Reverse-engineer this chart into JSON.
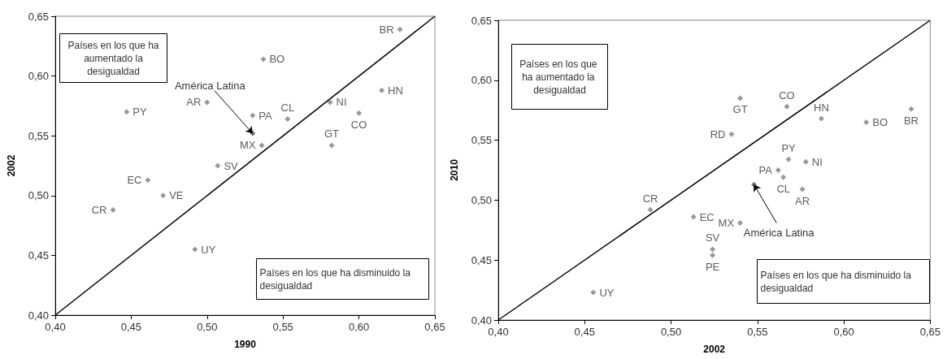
{
  "chart_data": [
    {
      "type": "scatter",
      "xlabel": "1990",
      "ylabel": "2002",
      "marker": "diamond",
      "xlim": [
        0.4,
        0.65
      ],
      "ylim": [
        0.4,
        0.65
      ],
      "xticks": [
        {
          "value": 0.4,
          "label": "0,40"
        },
        {
          "value": 0.45,
          "label": "0,45"
        },
        {
          "value": 0.5,
          "label": "0,50"
        },
        {
          "value": 0.55,
          "label": "0,55"
        },
        {
          "value": 0.6,
          "label": "0,60"
        },
        {
          "value": 0.65,
          "label": "0,65"
        }
      ],
      "yticks": [
        {
          "value": 0.4,
          "label": "0,40"
        },
        {
          "value": 0.45,
          "label": "0,45"
        },
        {
          "value": 0.5,
          "label": "0,50"
        },
        {
          "value": 0.55,
          "label": "0,55"
        },
        {
          "value": 0.6,
          "label": "0,60"
        },
        {
          "value": 0.65,
          "label": "0,65"
        }
      ],
      "series": [
        {
          "type": "line",
          "marker": "none",
          "color": "#000000",
          "x": [
            0.4,
            0.65
          ],
          "values": [
            0.4,
            0.65
          ]
        },
        {
          "name": "PY",
          "color": "#7f7f7f",
          "x": [
            0.447
          ],
          "values": [
            0.57
          ]
        },
        {
          "name": "AR",
          "color": "#7f7f7f",
          "x": [
            0.5
          ],
          "values": [
            0.578
          ]
        },
        {
          "name": "PA",
          "color": "#7f7f7f",
          "x": [
            0.53
          ],
          "values": [
            0.567
          ]
        },
        {
          "name": "MX",
          "color": "#7f7f7f",
          "x": [
            0.536
          ],
          "values": [
            0.542
          ]
        },
        {
          "name": "SV",
          "color": "#7f7f7f",
          "x": [
            0.507
          ],
          "values": [
            0.525
          ]
        },
        {
          "name": "EC",
          "color": "#7f7f7f",
          "x": [
            0.461
          ],
          "values": [
            0.513
          ]
        },
        {
          "name": "VE",
          "color": "#7f7f7f",
          "x": [
            0.471
          ],
          "values": [
            0.5
          ]
        },
        {
          "name": "CR",
          "color": "#7f7f7f",
          "x": [
            0.438
          ],
          "values": [
            0.488
          ]
        },
        {
          "name": "UY",
          "color": "#7f7f7f",
          "x": [
            0.492
          ],
          "values": [
            0.455
          ]
        },
        {
          "name": "BO",
          "color": "#7f7f7f",
          "x": [
            0.537
          ],
          "values": [
            0.614
          ]
        },
        {
          "name": "BR",
          "color": "#7f7f7f",
          "x": [
            0.627
          ],
          "values": [
            0.639
          ]
        },
        {
          "name": "CL",
          "color": "#7f7f7f",
          "x": [
            0.553
          ],
          "values": [
            0.564
          ]
        },
        {
          "name": "NI",
          "color": "#7f7f7f",
          "x": [
            0.581
          ],
          "values": [
            0.578
          ]
        },
        {
          "name": "HN",
          "color": "#7f7f7f",
          "x": [
            0.615
          ],
          "values": [
            0.588
          ]
        },
        {
          "name": "CO",
          "color": "#7f7f7f",
          "x": [
            0.6
          ],
          "values": [
            0.569
          ]
        },
        {
          "name": "GT",
          "color": "#7f7f7f",
          "x": [
            0.582
          ],
          "values": [
            0.542
          ]
        },
        {
          "color": "#595959",
          "x": [
            0.53
          ],
          "values": [
            0.552
          ]
        }
      ],
      "annotations": [
        "Países en los que ha aumentado la desigualdad",
        "Países en los que ha disminuido la desigualdad",
        {
          "text": "América Latina",
          "x": 0.53,
          "y": 0.552
        }
      ]
    },
    {
      "type": "scatter",
      "xlabel": "2002",
      "ylabel": "2010",
      "marker": "diamond",
      "xlim": [
        0.4,
        0.65
      ],
      "ylim": [
        0.4,
        0.65
      ],
      "xticks": [
        {
          "value": 0.4,
          "label": "0,40"
        },
        {
          "value": 0.45,
          "label": "0,45"
        },
        {
          "value": 0.5,
          "label": "0,50"
        },
        {
          "value": 0.55,
          "label": "0,55"
        },
        {
          "value": 0.6,
          "label": "0,60"
        },
        {
          "value": 0.65,
          "label": "0,65"
        }
      ],
      "yticks": [
        {
          "value": 0.4,
          "label": "0,40"
        },
        {
          "value": 0.45,
          "label": "0,45"
        },
        {
          "value": 0.5,
          "label": "0,50"
        },
        {
          "value": 0.55,
          "label": "0,55"
        },
        {
          "value": 0.6,
          "label": "0,60"
        },
        {
          "value": 0.65,
          "label": "0,65"
        }
      ],
      "series": [
        {
          "type": "line",
          "marker": "none",
          "color": "#000000",
          "x": [
            0.4,
            0.65
          ],
          "values": [
            0.4,
            0.65
          ]
        },
        {
          "name": "UY",
          "color": "#7f7f7f",
          "x": [
            0.455
          ],
          "values": [
            0.423
          ]
        },
        {
          "name": "CR",
          "color": "#7f7f7f",
          "x": [
            0.488
          ],
          "values": [
            0.492
          ]
        },
        {
          "name": "EC",
          "color": "#7f7f7f",
          "x": [
            0.513
          ],
          "values": [
            0.486
          ]
        },
        {
          "name": "SV",
          "color": "#7f7f7f",
          "x": [
            0.524
          ],
          "values": [
            0.459
          ]
        },
        {
          "name": "PE",
          "color": "#7f7f7f",
          "x": [
            0.524
          ],
          "values": [
            0.454
          ]
        },
        {
          "name": "MX",
          "color": "#7f7f7f",
          "x": [
            0.54
          ],
          "values": [
            0.481
          ]
        },
        {
          "name": "GT",
          "color": "#7f7f7f",
          "x": [
            0.54
          ],
          "values": [
            0.585
          ]
        },
        {
          "name": "CO",
          "color": "#7f7f7f",
          "x": [
            0.567
          ],
          "values": [
            0.578
          ]
        },
        {
          "name": "RD",
          "color": "#7f7f7f",
          "x": [
            0.535
          ],
          "values": [
            0.555
          ]
        },
        {
          "name": "HN",
          "color": "#7f7f7f",
          "x": [
            0.587
          ],
          "values": [
            0.568
          ]
        },
        {
          "name": "BO",
          "color": "#7f7f7f",
          "x": [
            0.613
          ],
          "values": [
            0.565
          ]
        },
        {
          "name": "BR",
          "color": "#7f7f7f",
          "x": [
            0.639
          ],
          "values": [
            0.576
          ]
        },
        {
          "name": "PY",
          "color": "#7f7f7f",
          "x": [
            0.568
          ],
          "values": [
            0.534
          ]
        },
        {
          "name": "NI",
          "color": "#7f7f7f",
          "x": [
            0.578
          ],
          "values": [
            0.532
          ]
        },
        {
          "name": "PA",
          "color": "#7f7f7f",
          "x": [
            0.562
          ],
          "values": [
            0.525
          ]
        },
        {
          "name": "CL",
          "color": "#7f7f7f",
          "x": [
            0.565
          ],
          "values": [
            0.519
          ]
        },
        {
          "name": "AR",
          "color": "#7f7f7f",
          "x": [
            0.576
          ],
          "values": [
            0.509
          ]
        },
        {
          "color": "#595959",
          "x": [
            0.548
          ],
          "values": [
            0.513
          ]
        }
      ],
      "annotations": [
        "Países en los que ha aumentado la desigualdad",
        "Países en los que ha disminuido la desigualdad",
        {
          "text": "América Latina",
          "x": 0.548,
          "y": 0.513
        }
      ]
    }
  ]
}
